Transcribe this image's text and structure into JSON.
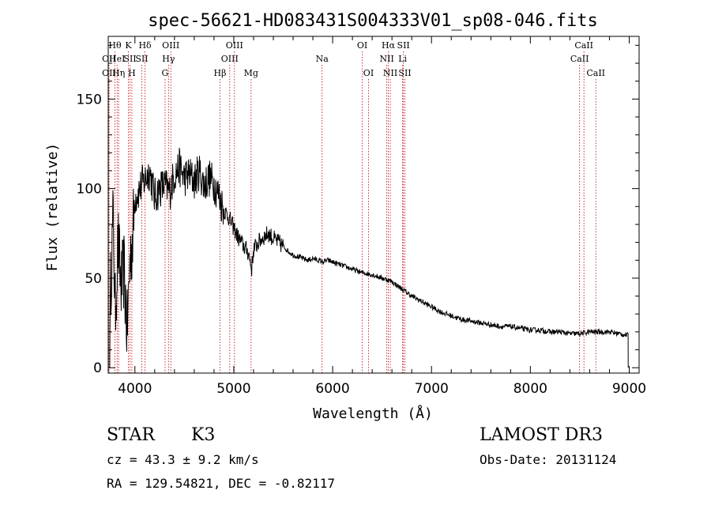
{
  "chart_data": {
    "type": "line",
    "title": "spec-56621-HD083431S004333V01_sp08-046.fits",
    "xlabel": "Wavelength (Å)",
    "ylabel": "Flux (relative)",
    "xlim": [
      3730,
      9100
    ],
    "ylim": [
      -3,
      185
    ],
    "x_ticks": [
      4000,
      5000,
      6000,
      7000,
      8000,
      9000
    ],
    "y_ticks": [
      0,
      50,
      100,
      150
    ],
    "grid": false,
    "series": [
      {
        "name": "flux",
        "x": [
          3750,
          3780,
          3800,
          3830,
          3860,
          3890,
          3920,
          3950,
          3980,
          4000,
          4050,
          4100,
          4150,
          4200,
          4250,
          4300,
          4350,
          4400,
          4450,
          4500,
          4550,
          4600,
          4650,
          4700,
          4750,
          4800,
          4850,
          4900,
          4950,
          5000,
          5050,
          5100,
          5150,
          5180,
          5200,
          5250,
          5300,
          5350,
          5400,
          5450,
          5500,
          5550,
          5600,
          5650,
          5700,
          5750,
          5800,
          5850,
          5900,
          5950,
          6000,
          6100,
          6200,
          6300,
          6400,
          6500,
          6560,
          6600,
          6700,
          6800,
          6900,
          7000,
          7100,
          7200,
          7300,
          7400,
          7500,
          7600,
          7700,
          7800,
          7900,
          8000,
          8100,
          8200,
          8300,
          8400,
          8500,
          8600,
          8700,
          8800,
          8900,
          8990
        ],
        "y": [
          40,
          85,
          30,
          70,
          45,
          55,
          20,
          60,
          75,
          95,
          100,
          105,
          110,
          95,
          100,
          102,
          98,
          108,
          112,
          106,
          108,
          104,
          110,
          102,
          106,
          103,
          96,
          88,
          84,
          78,
          72,
          68,
          64,
          55,
          66,
          70,
          73,
          75,
          72,
          70,
          68,
          65,
          63,
          62,
          61,
          60,
          61,
          60,
          59,
          60,
          59,
          57,
          55,
          53,
          52,
          50,
          49,
          48,
          44,
          40,
          37,
          34,
          31,
          29,
          27,
          26,
          25,
          24,
          23,
          23,
          22,
          21,
          21,
          20,
          20,
          19,
          19,
          20,
          20,
          20,
          19,
          18
        ]
      }
    ],
    "lines": [
      {
        "label": "OII",
        "x": 3727,
        "row": 2
      },
      {
        "label": "OII",
        "x": 3730,
        "row": 3
      },
      {
        "label": "Hθ",
        "x": 3798,
        "row": 1
      },
      {
        "label": "HeI",
        "x": 3820,
        "row": 2
      },
      {
        "label": "Hη",
        "x": 3835,
        "row": 3
      },
      {
        "label": "K",
        "x": 3934,
        "row": 1
      },
      {
        "label": "SII",
        "x": 3950,
        "row": 2
      },
      {
        "label": "H",
        "x": 3969,
        "row": 3
      },
      {
        "label": "Hδ",
        "x": 4102,
        "row": 1
      },
      {
        "label": "SII",
        "x": 4070,
        "row": 2
      },
      {
        "label": "OIII",
        "x": 4363,
        "row": 1
      },
      {
        "label": "Hγ",
        "x": 4340,
        "row": 2
      },
      {
        "label": "G",
        "x": 4305,
        "row": 3
      },
      {
        "label": "OIII",
        "x": 5007,
        "row": 1
      },
      {
        "label": "OIII",
        "x": 4959,
        "row": 2
      },
      {
        "label": "Hβ",
        "x": 4861,
        "row": 3
      },
      {
        "label": "Mg",
        "x": 5175,
        "row": 3
      },
      {
        "label": "Na",
        "x": 5893,
        "row": 2
      },
      {
        "label": "OI",
        "x": 6300,
        "row": 1
      },
      {
        "label": "OI",
        "x": 6363,
        "row": 3
      },
      {
        "label": "Hα",
        "x": 6563,
        "row": 1
      },
      {
        "label": "SII",
        "x": 6716,
        "row": 1
      },
      {
        "label": "NII",
        "x": 6548,
        "row": 2
      },
      {
        "label": "Li",
        "x": 6708,
        "row": 2
      },
      {
        "label": "NII",
        "x": 6583,
        "row": 3
      },
      {
        "label": "SII",
        "x": 6731,
        "row": 3
      },
      {
        "label": "CaII",
        "x": 8542,
        "row": 1
      },
      {
        "label": "CaII",
        "x": 8498,
        "row": 2
      },
      {
        "label": "CaII",
        "x": 8662,
        "row": 3
      }
    ]
  },
  "info": {
    "class_label": "STAR",
    "subclass": "K3",
    "survey": "LAMOST DR3",
    "redshift": "cz = 43.3 ± 9.2 km/s",
    "obs_date": "Obs-Date: 20131124",
    "coords": "RA = 129.54821, DEC =  -0.82117"
  }
}
